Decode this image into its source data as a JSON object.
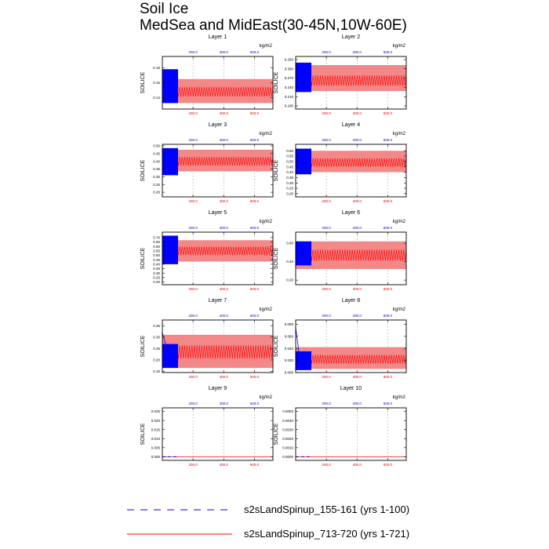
{
  "title_line1": "Soil Ice",
  "title_line2": "MedSea and MidEast(30-45N,10W-60E)",
  "units": "kg/m2",
  "ylabel": "SOILICE",
  "legend": [
    {
      "label": "s2sLandSpinup_155-161 (yrs 1-100)",
      "color": "#0000ff",
      "dashed": true
    },
    {
      "label": "s2sLandSpinup_713-720 (yrs 1-721)",
      "color": "#ff0000",
      "dashed": false
    }
  ],
  "chart_data": [
    {
      "type": "line",
      "title": "Layer 1",
      "ylabel": "SOILICE",
      "ylim": [
        0.125,
        0.195
      ],
      "yticks": [
        "0.18",
        "0.16",
        "0.14"
      ],
      "ytick_values": [
        0.18,
        0.16,
        0.14
      ],
      "xlim_top": [
        0,
        100
      ],
      "xlim_bottom": [
        0,
        721
      ],
      "xticks_top": [
        "200.0",
        "400.0",
        "600.0"
      ],
      "xtick_top_values": [
        200,
        400,
        600
      ],
      "xticks_bottom": [
        "200.0",
        "400.0",
        "600.0"
      ],
      "xtick_bottom_values": [
        200,
        400,
        600
      ],
      "series": [
        {
          "name": "s2sLandSpinup_155-161",
          "years": [
            1,
            100
          ],
          "start_value": 0.165,
          "band_low": 0.133,
          "band_high": 0.178,
          "mean_value": 0.152
        },
        {
          "name": "s2sLandSpinup_713-720",
          "years": [
            1,
            721
          ],
          "start_value": 0.152,
          "band_low": 0.133,
          "band_high": 0.165,
          "mean_value": 0.148
        }
      ]
    },
    {
      "type": "line",
      "title": "Layer 2",
      "ylabel": "SOILICE",
      "ylim": [
        0.17,
        0.34
      ],
      "yticks": [
        "0.330",
        "0.300",
        "0.270",
        "0.240",
        "0.210",
        "0.180"
      ],
      "ytick_values": [
        0.33,
        0.3,
        0.27,
        0.24,
        0.21,
        0.18
      ],
      "xlim_top": [
        0,
        100
      ],
      "xlim_bottom": [
        0,
        721
      ],
      "xticks_top": [
        "200.0",
        "400.0",
        "600.0"
      ],
      "xtick_top_values": [
        200,
        400,
        600
      ],
      "xticks_bottom": [
        "200.0",
        "400.0",
        "600.0"
      ],
      "xtick_bottom_values": [
        200,
        400,
        600
      ],
      "series": [
        {
          "name": "s2sLandSpinup_155-161",
          "years": [
            1,
            100
          ],
          "start_value": 0.27,
          "band_low": 0.225,
          "band_high": 0.32,
          "mean_value": 0.262
        },
        {
          "name": "s2sLandSpinup_713-720",
          "years": [
            1,
            721
          ],
          "start_value": 0.262,
          "band_low": 0.228,
          "band_high": 0.312,
          "mean_value": 0.262
        }
      ]
    },
    {
      "type": "line",
      "title": "Layer 3",
      "ylabel": "SOILICE",
      "ylim": [
        0.17,
        0.51
      ],
      "yticks": [
        "0.50",
        "0.45",
        "0.40",
        "0.35",
        "0.30",
        "0.25",
        "0.20"
      ],
      "ytick_values": [
        0.5,
        0.45,
        0.4,
        0.35,
        0.3,
        0.25,
        0.2
      ],
      "xlim_top": [
        0,
        100
      ],
      "xlim_bottom": [
        0,
        721
      ],
      "xticks_top": [
        "200.0",
        "400.0",
        "600.0"
      ],
      "xtick_top_values": [
        200,
        400,
        600
      ],
      "xticks_bottom": [
        "200.0",
        "400.0",
        "600.0"
      ],
      "xtick_bottom_values": [
        200,
        400,
        600
      ],
      "series": [
        {
          "name": "s2sLandSpinup_155-161",
          "years": [
            1,
            100
          ],
          "start_value": 0.42,
          "band_low": 0.31,
          "band_high": 0.485,
          "mean_value": 0.4
        },
        {
          "name": "s2sLandSpinup_713-720",
          "years": [
            1,
            721
          ],
          "start_value": 0.4,
          "band_low": 0.335,
          "band_high": 0.475,
          "mean_value": 0.4
        }
      ]
    },
    {
      "type": "line",
      "title": "Layer 4",
      "ylabel": "SOILICE",
      "ylim": [
        0.17,
        0.66
      ],
      "yticks": [
        "0.60",
        "0.55",
        "0.50",
        "0.45",
        "0.40",
        "0.35",
        "0.30",
        "0.25",
        "0.20"
      ],
      "ytick_values": [
        0.6,
        0.55,
        0.5,
        0.45,
        0.4,
        0.35,
        0.3,
        0.25,
        0.2
      ],
      "xlim_top": [
        0,
        100
      ],
      "xlim_bottom": [
        0,
        721
      ],
      "xticks_top": [
        "200.0",
        "400.0",
        "600.0"
      ],
      "xtick_top_values": [
        200,
        400,
        600
      ],
      "xticks_bottom": [
        "200.0",
        "400.0",
        "600.0"
      ],
      "xtick_bottom_values": [
        200,
        400,
        600
      ],
      "series": [
        {
          "name": "s2sLandSpinup_155-161",
          "years": [
            1,
            100
          ],
          "start_value": 0.5,
          "band_low": 0.38,
          "band_high": 0.62,
          "mean_value": 0.49
        },
        {
          "name": "s2sLandSpinup_713-720",
          "years": [
            1,
            721
          ],
          "start_value": 0.49,
          "band_low": 0.4,
          "band_high": 0.6,
          "mean_value": 0.49
        }
      ]
    },
    {
      "type": "line",
      "title": "Layer 5",
      "ylabel": "SOILICE",
      "ylim": [
        0.17,
        0.76
      ],
      "yticks": [
        "0.70",
        "0.65",
        "0.60",
        "0.55",
        "0.50",
        "0.45",
        "0.40",
        "0.35",
        "0.30",
        "0.25",
        "0.20"
      ],
      "ytick_values": [
        0.7,
        0.65,
        0.6,
        0.55,
        0.5,
        0.45,
        0.4,
        0.35,
        0.3,
        0.25,
        0.2
      ],
      "xlim_top": [
        0,
        100
      ],
      "xlim_bottom": [
        0,
        721
      ],
      "xticks_top": [
        "200.0",
        "400.0",
        "600.0"
      ],
      "xtick_top_values": [
        200,
        400,
        600
      ],
      "xticks_bottom": [
        "200.0",
        "400.0",
        "600.0"
      ],
      "xtick_bottom_values": [
        200,
        400,
        600
      ],
      "series": [
        {
          "name": "s2sLandSpinup_155-161",
          "years": [
            1,
            100
          ],
          "start_value": 0.6,
          "band_low": 0.4,
          "band_high": 0.72,
          "mean_value": 0.55
        },
        {
          "name": "s2sLandSpinup_713-720",
          "years": [
            1,
            721
          ],
          "start_value": 0.55,
          "band_low": 0.43,
          "band_high": 0.67,
          "mean_value": 0.55
        }
      ]
    },
    {
      "type": "line",
      "title": "Layer 6",
      "ylabel": "SOILICE",
      "ylim": [
        0.15,
        0.72
      ],
      "yticks": [
        "0.60",
        "0.40",
        "0.20"
      ],
      "ytick_values": [
        0.6,
        0.4,
        0.2
      ],
      "xlim_top": [
        0,
        100
      ],
      "xlim_bottom": [
        0,
        721
      ],
      "xticks_top": [
        "200.0",
        "400.0",
        "600.0"
      ],
      "xtick_top_values": [
        200,
        400,
        600
      ],
      "xticks_bottom": [
        "200.0",
        "400.0",
        "600.0"
      ],
      "xtick_bottom_values": [
        200,
        400,
        600
      ],
      "series": [
        {
          "name": "s2sLandSpinup_155-161",
          "years": [
            1,
            100
          ],
          "start_value": 0.48,
          "band_low": 0.36,
          "band_high": 0.62,
          "mean_value": 0.47
        },
        {
          "name": "s2sLandSpinup_713-720",
          "years": [
            1,
            721
          ],
          "start_value": 0.47,
          "band_low": 0.32,
          "band_high": 0.62,
          "mean_value": 0.47
        }
      ]
    },
    {
      "type": "line",
      "title": "Layer 7",
      "ylabel": "SOILICE",
      "ylim": [
        0.145,
        0.375
      ],
      "yticks": [
        "0.35",
        "0.30",
        "0.25",
        "0.20",
        "0.15"
      ],
      "ytick_values": [
        0.35,
        0.3,
        0.25,
        0.2,
        0.15
      ],
      "xlim_top": [
        0,
        100
      ],
      "xlim_bottom": [
        0,
        721
      ],
      "xticks_top": [
        "200.0",
        "400.0",
        "600.0"
      ],
      "xtick_top_values": [
        200,
        400,
        600
      ],
      "xticks_bottom": [
        "200.0",
        "400.0",
        "600.0"
      ],
      "xtick_bottom_values": [
        200,
        400,
        600
      ],
      "series": [
        {
          "name": "s2sLandSpinup_155-161",
          "years": [
            1,
            100
          ],
          "start_value": 0.32,
          "band_low": 0.165,
          "band_high": 0.27,
          "mean_value": 0.215
        },
        {
          "name": "s2sLandSpinup_713-720",
          "years": [
            1,
            721
          ],
          "start_value": 0.215,
          "band_low": 0.165,
          "band_high": 0.31,
          "mean_value": 0.235
        }
      ]
    },
    {
      "type": "line",
      "title": "Layer 8",
      "ylabel": "SOILICE",
      "ylim": [
        0.0,
        0.087
      ],
      "yticks": [
        "0.080",
        "0.060",
        "0.040",
        "0.020",
        "0.000"
      ],
      "ytick_values": [
        0.08,
        0.06,
        0.04,
        0.02,
        0.0
      ],
      "xlim_top": [
        0,
        100
      ],
      "xlim_bottom": [
        0,
        721
      ],
      "xticks_top": [
        "200.0",
        "400.0",
        "600.0"
      ],
      "xtick_top_values": [
        200,
        400,
        600
      ],
      "xticks_bottom": [
        "200.0",
        "400.0",
        "600.0"
      ],
      "xtick_bottom_values": [
        200,
        400,
        600
      ],
      "series": [
        {
          "name": "s2sLandSpinup_155-161",
          "years": [
            1,
            100
          ],
          "start_value": 0.075,
          "band_low": 0.004,
          "band_high": 0.035,
          "mean_value": 0.018
        },
        {
          "name": "s2sLandSpinup_713-720",
          "years": [
            1,
            721
          ],
          "start_value": 0.03,
          "band_low": 0.006,
          "band_high": 0.042,
          "mean_value": 0.022
        }
      ]
    },
    {
      "type": "line",
      "title": "Layer 9",
      "ylabel": "SOILICE",
      "ylim": [
        -0.002,
        0.027
      ],
      "yticks": [
        "0.025",
        "0.020",
        "0.015",
        "0.010",
        "0.005",
        "0.000"
      ],
      "ytick_values": [
        0.025,
        0.02,
        0.015,
        0.01,
        0.005,
        0.0
      ],
      "xlim_top": [
        0,
        100
      ],
      "xlim_bottom": [
        0,
        721
      ],
      "xticks_top": [
        "200.0",
        "400.0",
        "600.0"
      ],
      "xtick_top_values": [
        200,
        400,
        600
      ],
      "xticks_bottom": [
        "200.0",
        "400.0",
        "600.0"
      ],
      "xtick_bottom_values": [
        200,
        400,
        600
      ],
      "series": [
        {
          "name": "s2sLandSpinup_155-161",
          "years": [
            1,
            100
          ],
          "start_value": 0.0,
          "band_low": 0.0,
          "band_high": 0.0,
          "mean_value": 0.0
        },
        {
          "name": "s2sLandSpinup_713-720",
          "years": [
            1,
            721
          ],
          "start_value": 0.0,
          "band_low": 0.0,
          "band_high": 0.0,
          "mean_value": 0.0
        }
      ]
    },
    {
      "type": "line",
      "title": "Layer 10",
      "ylabel": "SOILICE",
      "ylim": [
        -0.0004,
        0.0054
      ],
      "yticks": [
        "0.0050",
        "0.0040",
        "0.0030",
        "0.0020",
        "0.0010",
        "0.0000"
      ],
      "ytick_values": [
        0.005,
        0.004,
        0.003,
        0.002,
        0.001,
        0.0
      ],
      "xlim_top": [
        0,
        100
      ],
      "xlim_bottom": [
        0,
        721
      ],
      "xticks_top": [
        "200.0",
        "400.0",
        "600.0"
      ],
      "xtick_top_values": [
        200,
        400,
        600
      ],
      "xticks_bottom": [
        "200.0",
        "400.0",
        "600.0"
      ],
      "xtick_bottom_values": [
        200,
        400,
        600
      ],
      "series": [
        {
          "name": "s2sLandSpinup_155-161",
          "years": [
            1,
            100
          ],
          "start_value": 0.0,
          "band_low": 0.0,
          "band_high": 0.0,
          "mean_value": 0.0
        },
        {
          "name": "s2sLandSpinup_713-720",
          "years": [
            1,
            721
          ],
          "start_value": 0.0,
          "band_low": 0.0,
          "band_high": 0.0,
          "mean_value": 0.0
        }
      ]
    }
  ]
}
